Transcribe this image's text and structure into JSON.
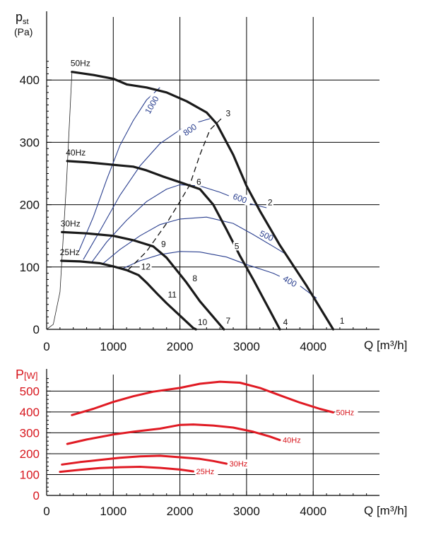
{
  "chart_data": [
    {
      "type": "line",
      "title": "",
      "ylabel": "p",
      "ylabel_sub": "st",
      "yunit": "(Pa)",
      "xlabel": "Q [m³/h]",
      "xlim": [
        0,
        4800
      ],
      "ylim": [
        0,
        440
      ],
      "xticks": [
        0,
        1000,
        2000,
        3000,
        4000
      ],
      "yticks": [
        0,
        100,
        200,
        300,
        400
      ],
      "grid": true,
      "series": [
        {
          "name": "50Hz",
          "label": "50Hz",
          "end_label": "1",
          "points": [
            [
              380,
              413
            ],
            [
              700,
              408
            ],
            [
              1000,
              402
            ],
            [
              1200,
              393
            ],
            [
              1500,
              388
            ],
            [
              1800,
              380
            ],
            [
              2100,
              366
            ],
            [
              2400,
              348
            ],
            [
              2550,
              330
            ],
            [
              2800,
              280
            ],
            [
              3000,
              230
            ],
            [
              3200,
              190
            ],
            [
              3500,
              135
            ],
            [
              3900,
              70
            ],
            [
              4300,
              0
            ]
          ]
        },
        {
          "name": "40Hz",
          "label": "40Hz",
          "end_label": "4",
          "points": [
            [
              310,
              270
            ],
            [
              600,
              268
            ],
            [
              1000,
              264
            ],
            [
              1300,
              261
            ],
            [
              1500,
              255
            ],
            [
              1750,
              245
            ],
            [
              2000,
              236
            ],
            [
              2300,
              225
            ],
            [
              2500,
              200
            ],
            [
              2700,
              160
            ],
            [
              2900,
              118
            ],
            [
              3100,
              80
            ],
            [
              3300,
              40
            ],
            [
              3500,
              0
            ]
          ]
        },
        {
          "name": "30Hz",
          "label": "30Hz",
          "end_label": "7",
          "points": [
            [
              230,
              156
            ],
            [
              600,
              154
            ],
            [
              1000,
              150
            ],
            [
              1300,
              143
            ],
            [
              1600,
              133
            ],
            [
              1800,
              115
            ],
            [
              1950,
              95
            ],
            [
              2100,
              75
            ],
            [
              2300,
              45
            ],
            [
              2500,
              20
            ],
            [
              2660,
              0
            ]
          ]
        },
        {
          "name": "25Hz",
          "label": "25Hz",
          "end_label": "10",
          "points": [
            [
              220,
              110
            ],
            [
              500,
              109
            ],
            [
              800,
              106
            ],
            [
              1000,
              101
            ],
            [
              1200,
              95
            ],
            [
              1380,
              87
            ],
            [
              1500,
              75
            ],
            [
              1650,
              58
            ],
            [
              1800,
              42
            ],
            [
              2000,
              22
            ],
            [
              2200,
              2
            ],
            [
              2240,
              0
            ]
          ]
        }
      ],
      "system_curve": {
        "points": [
          [
            0,
            0
          ],
          [
            100,
            8
          ],
          [
            200,
            60
          ],
          [
            300,
            240
          ],
          [
            380,
            413
          ]
        ]
      },
      "efficiency_curves": [
        {
          "label": "1000",
          "points": [
            [
              480,
              125
            ],
            [
              700,
              180
            ],
            [
              900,
              240
            ],
            [
              1100,
              295
            ],
            [
              1300,
              335
            ],
            [
              1500,
              368
            ],
            [
              1700,
              388
            ]
          ]
        },
        {
          "label": "800",
          "points": [
            [
              550,
              112
            ],
            [
              800,
              158
            ],
            [
              1100,
              215
            ],
            [
              1400,
              262
            ],
            [
              1700,
              298
            ],
            [
              2000,
              320
            ],
            [
              2200,
              330
            ],
            [
              2450,
              338
            ]
          ]
        },
        {
          "label": "600",
          "points": [
            [
              680,
              108
            ],
            [
              900,
              140
            ],
            [
              1200,
              175
            ],
            [
              1500,
              205
            ],
            [
              1800,
              225
            ],
            [
              2000,
              232
            ],
            [
              2300,
              230
            ],
            [
              2600,
              220
            ],
            [
              3000,
              203
            ],
            [
              3300,
              195
            ]
          ]
        },
        {
          "label": "500",
          "points": [
            [
              850,
              106
            ],
            [
              1100,
              128
            ],
            [
              1400,
              150
            ],
            [
              1700,
              168
            ],
            [
              2000,
              177
            ],
            [
              2400,
              180
            ],
            [
              2800,
              170
            ],
            [
              3100,
              152
            ],
            [
              3400,
              133
            ],
            [
              3600,
              120
            ]
          ]
        },
        {
          "label": "400",
          "points": [
            [
              1150,
              98
            ],
            [
              1400,
              110
            ],
            [
              1700,
              120
            ],
            [
              2000,
              125
            ],
            [
              2300,
              124
            ],
            [
              2700,
              116
            ],
            [
              3000,
              104
            ],
            [
              3400,
              90
            ],
            [
              3800,
              70
            ],
            [
              4050,
              50
            ]
          ]
        }
      ],
      "operating_line": {
        "points": [
          [
            1220,
            95
          ],
          [
            1500,
            125
          ],
          [
            1800,
            170
          ],
          [
            2000,
            205
          ],
          [
            2150,
            232
          ],
          [
            2300,
            280
          ],
          [
            2450,
            320
          ],
          [
            2620,
            338
          ]
        ]
      },
      "point_labels": [
        {
          "label": "1",
          "x": 4430,
          "y": 10
        },
        {
          "label": "2",
          "x": 3350,
          "y": 200
        },
        {
          "label": "3",
          "x": 2720,
          "y": 343
        },
        {
          "label": "4",
          "x": 3580,
          "y": 8
        },
        {
          "label": "5",
          "x": 2850,
          "y": 130
        },
        {
          "label": "6",
          "x": 2280,
          "y": 233
        },
        {
          "label": "7",
          "x": 2720,
          "y": 10
        },
        {
          "label": "8",
          "x": 2220,
          "y": 78
        },
        {
          "label": "9",
          "x": 1750,
          "y": 133
        },
        {
          "label": "10",
          "x": 2300,
          "y": 8
        },
        {
          "label": "11",
          "x": 1850,
          "y": 52
        },
        {
          "label": "12",
          "x": 1450,
          "y": 97
        }
      ]
    },
    {
      "type": "line",
      "title": "",
      "ylabel": "P",
      "yunit": "[W]",
      "xlabel": "Q [m³/h]",
      "xlim": [
        0,
        4800
      ],
      "ylim": [
        0,
        600
      ],
      "xticks": [
        0,
        1000,
        2000,
        3000,
        4000
      ],
      "yticks": [
        0,
        100,
        200,
        300,
        400,
        500
      ],
      "grid": true,
      "series": [
        {
          "name": "50Hz",
          "points": [
            [
              380,
              385
            ],
            [
              700,
              415
            ],
            [
              1000,
              448
            ],
            [
              1300,
              475
            ],
            [
              1600,
              497
            ],
            [
              2000,
              515
            ],
            [
              2300,
              535
            ],
            [
              2600,
              545
            ],
            [
              2900,
              540
            ],
            [
              3200,
              515
            ],
            [
              3500,
              480
            ],
            [
              3800,
              445
            ],
            [
              4100,
              415
            ],
            [
              4300,
              398
            ]
          ]
        },
        {
          "name": "40Hz",
          "points": [
            [
              310,
              247
            ],
            [
              600,
              268
            ],
            [
              1000,
              292
            ],
            [
              1300,
              305
            ],
            [
              1700,
              320
            ],
            [
              2000,
              338
            ],
            [
              2200,
              340
            ],
            [
              2500,
              335
            ],
            [
              2800,
              325
            ],
            [
              3100,
              305
            ],
            [
              3350,
              282
            ],
            [
              3500,
              265
            ]
          ]
        },
        {
          "name": "30Hz",
          "points": [
            [
              230,
              148
            ],
            [
              500,
              160
            ],
            [
              800,
              170
            ],
            [
              1100,
              180
            ],
            [
              1400,
              187
            ],
            [
              1700,
              190
            ],
            [
              2000,
              183
            ],
            [
              2300,
              175
            ],
            [
              2500,
              165
            ],
            [
              2700,
              152
            ]
          ]
        },
        {
          "name": "25Hz",
          "points": [
            [
              200,
              113
            ],
            [
              500,
              123
            ],
            [
              800,
              131
            ],
            [
              1100,
              135
            ],
            [
              1400,
              137
            ],
            [
              1700,
              132
            ],
            [
              2000,
              124
            ],
            [
              2200,
              115
            ]
          ]
        }
      ]
    }
  ]
}
